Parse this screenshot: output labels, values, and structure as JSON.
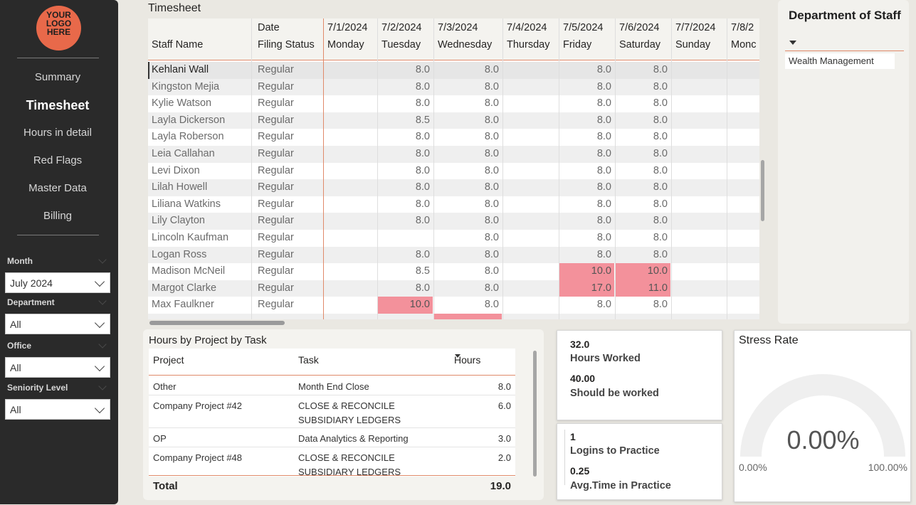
{
  "logo": {
    "line1": "YOUR",
    "line2": "LOGO",
    "line3": "HERE",
    "color": "#e8694a"
  },
  "nav": [
    {
      "label": "Summary",
      "active": false
    },
    {
      "label": "Timesheet",
      "active": true
    },
    {
      "label": "Hours in detail",
      "active": false
    },
    {
      "label": "Red Flags",
      "active": false
    },
    {
      "label": "Master Data",
      "active": false
    },
    {
      "label": "Billing",
      "active": false
    }
  ],
  "filters": [
    {
      "label": "Month",
      "value": "July 2024"
    },
    {
      "label": "Department",
      "value": "All"
    },
    {
      "label": "Office",
      "value": "All"
    },
    {
      "label": "Seniority Level",
      "value": "All"
    }
  ],
  "timesheet": {
    "title": "Timesheet",
    "header": {
      "staff": "Staff Name",
      "status_top": "Date",
      "status_bottom": "Filing Status",
      "dates": [
        {
          "date": "7/1/2024",
          "day": "Monday"
        },
        {
          "date": "7/2/2024",
          "day": "Tuesday"
        },
        {
          "date": "7/3/2024",
          "day": "Wednesday"
        },
        {
          "date": "7/4/2024",
          "day": "Thursday"
        },
        {
          "date": "7/5/2024",
          "day": "Friday"
        },
        {
          "date": "7/6/2024",
          "day": "Saturday"
        },
        {
          "date": "7/7/2024",
          "day": "Sunday"
        },
        {
          "date": "7/8/2",
          "day": "Monc"
        }
      ]
    },
    "flag_color": "#f3919b",
    "rows": [
      {
        "name": "Kehlani Wall",
        "status": "Regular",
        "hours": [
          "",
          "8.0",
          "8.0",
          "",
          "8.0",
          "8.0",
          "",
          ""
        ],
        "flags": []
      },
      {
        "name": "Kingston Mejia",
        "status": "Regular",
        "hours": [
          "",
          "8.0",
          "8.0",
          "",
          "8.0",
          "8.0",
          "",
          ""
        ],
        "flags": []
      },
      {
        "name": "Kylie Watson",
        "status": "Regular",
        "hours": [
          "",
          "8.0",
          "8.0",
          "",
          "8.0",
          "8.0",
          "",
          ""
        ],
        "flags": []
      },
      {
        "name": "Layla Dickerson",
        "status": "Regular",
        "hours": [
          "",
          "8.5",
          "8.0",
          "",
          "8.0",
          "8.0",
          "",
          ""
        ],
        "flags": []
      },
      {
        "name": "Layla Roberson",
        "status": "Regular",
        "hours": [
          "",
          "8.0",
          "8.0",
          "",
          "8.0",
          "8.0",
          "",
          ""
        ],
        "flags": []
      },
      {
        "name": "Leia Callahan",
        "status": "Regular",
        "hours": [
          "",
          "8.0",
          "8.0",
          "",
          "8.0",
          "8.0",
          "",
          ""
        ],
        "flags": []
      },
      {
        "name": "Levi Dixon",
        "status": "Regular",
        "hours": [
          "",
          "8.0",
          "8.0",
          "",
          "8.0",
          "8.0",
          "",
          ""
        ],
        "flags": []
      },
      {
        "name": "Lilah Howell",
        "status": "Regular",
        "hours": [
          "",
          "8.0",
          "8.0",
          "",
          "8.0",
          "8.0",
          "",
          ""
        ],
        "flags": []
      },
      {
        "name": "Liliana Watkins",
        "status": "Regular",
        "hours": [
          "",
          "8.0",
          "8.0",
          "",
          "8.0",
          "8.0",
          "",
          ""
        ],
        "flags": []
      },
      {
        "name": "Lily Clayton",
        "status": "Regular",
        "hours": [
          "",
          "8.0",
          "8.0",
          "",
          "8.0",
          "8.0",
          "",
          ""
        ],
        "flags": []
      },
      {
        "name": "Lincoln Kaufman",
        "status": "Regular",
        "hours": [
          "",
          "",
          "8.0",
          "",
          "8.0",
          "8.0",
          "",
          ""
        ],
        "flags": []
      },
      {
        "name": "Logan Ross",
        "status": "Regular",
        "hours": [
          "",
          "8.0",
          "8.0",
          "",
          "8.0",
          "8.0",
          "",
          ""
        ],
        "flags": []
      },
      {
        "name": "Madison McNeil",
        "status": "Regular",
        "hours": [
          "",
          "8.5",
          "8.0",
          "",
          "10.0",
          "10.0",
          "",
          ""
        ],
        "flags": [
          4,
          5
        ]
      },
      {
        "name": "Margot Clarke",
        "status": "Regular",
        "hours": [
          "",
          "8.0",
          "8.0",
          "",
          "17.0",
          "11.0",
          "",
          ""
        ],
        "flags": [
          4,
          5
        ]
      },
      {
        "name": "Max Faulkner",
        "status": "Regular",
        "hours": [
          "",
          "10.0",
          "8.0",
          "",
          "8.0",
          "8.0",
          "",
          ""
        ],
        "flags": [
          1
        ]
      },
      {
        "name": "",
        "status": "",
        "hours": [
          "",
          "",
          "",
          "",
          "",
          "",
          "",
          ""
        ],
        "flags": [
          2
        ]
      }
    ]
  },
  "department": {
    "title": "Department of Staff",
    "selected": "Wealth Management"
  },
  "projects": {
    "title": "Hours by Project by Task",
    "headers": {
      "project": "Project",
      "task": "Task",
      "hours": "Hours"
    },
    "rows": [
      {
        "project": "Other",
        "task": "Month End Close",
        "task2": "",
        "hours": "8.0"
      },
      {
        "project": "Company Project #42",
        "task": "CLOSE & RECONCILE",
        "task2": "SUBSIDIARY LEDGERS",
        "hours": "6.0"
      },
      {
        "project": "OP",
        "task": "Data Analytics & Reporting",
        "task2": "",
        "hours": "3.0"
      },
      {
        "project": "Company Project #48",
        "task": "CLOSE & RECONCILE",
        "task2": "SUBSIDIARY LEDGERS",
        "hours": "2.0"
      }
    ],
    "total_label": "Total",
    "total_value": "19.0"
  },
  "kpi_hours": {
    "worked_value": "32.0",
    "worked_label": "Hours Worked",
    "should_value": "40.00",
    "should_label": "Should be worked"
  },
  "kpi_logins": {
    "logins_value": "1",
    "logins_label": "Logins to Practice",
    "avg_value": "0.25",
    "avg_label": "Avg.Time in Practice"
  },
  "stress": {
    "title": "Stress Rate",
    "value": "0.00%",
    "min": "0.00%",
    "max": "100.00%",
    "fraction": 0
  }
}
